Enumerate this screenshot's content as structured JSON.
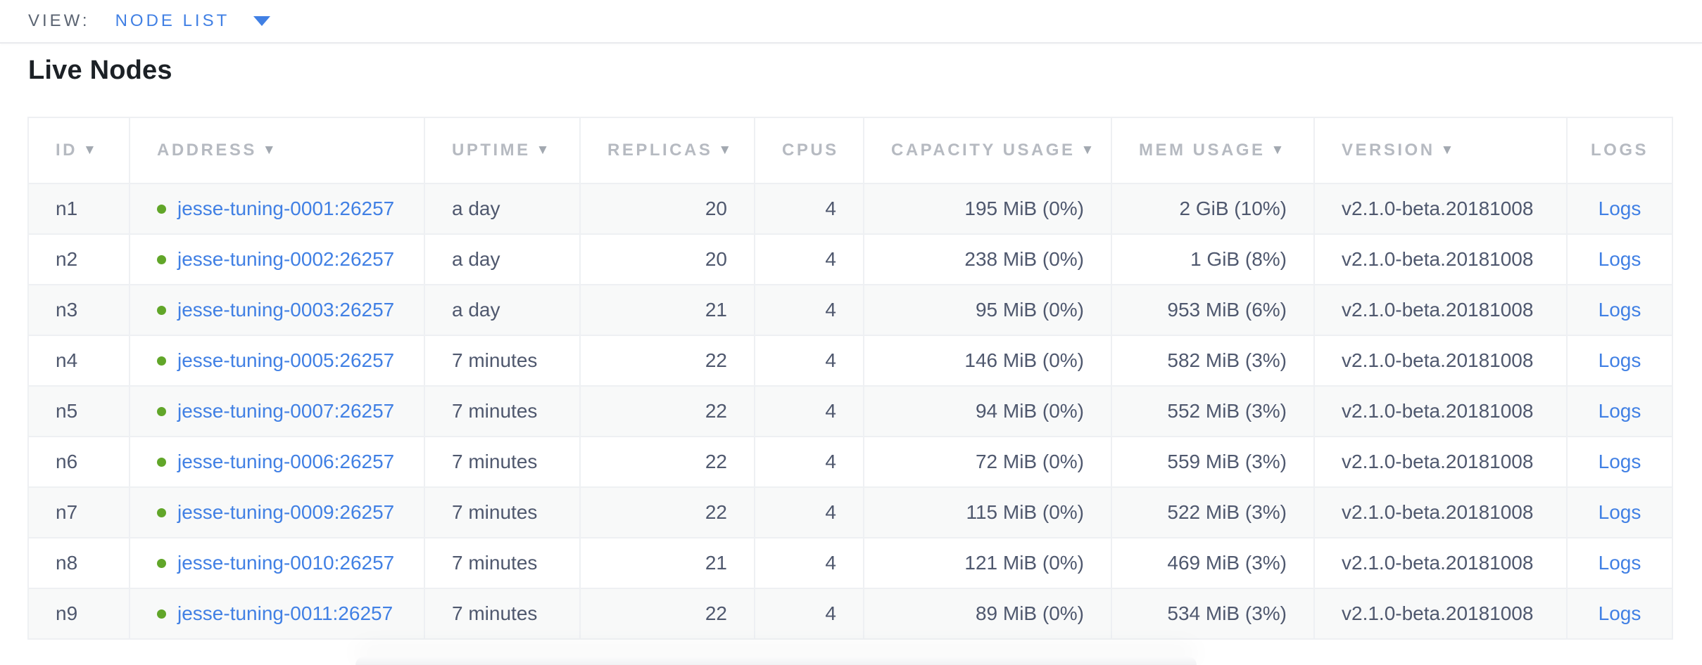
{
  "view_bar": {
    "label": "VIEW:",
    "selected": "NODE LIST"
  },
  "heading": "Live Nodes",
  "icons": {
    "sort_desc": "▼",
    "dropdown_caret": "▼",
    "health_dot": "●"
  },
  "colors": {
    "link_blue": "#4180e4",
    "healthy_green": "#61a629",
    "header_gray": "#b6bac1",
    "row_text": "#4f586e",
    "row_alt_bg": "#f8f9f9"
  },
  "table": {
    "columns": [
      {
        "label": "ID",
        "sortable": true
      },
      {
        "label": "ADDRESS",
        "sortable": true
      },
      {
        "label": "UPTIME",
        "sortable": true
      },
      {
        "label": "REPLICAS",
        "sortable": true
      },
      {
        "label": "CPUS",
        "sortable": false
      },
      {
        "label": "CAPACITY USAGE",
        "sortable": true
      },
      {
        "label": "MEM USAGE",
        "sortable": true
      },
      {
        "label": "VERSION",
        "sortable": true
      },
      {
        "label": "LOGS",
        "sortable": false
      }
    ],
    "rows": [
      {
        "id": "n1",
        "address": "jesse-tuning-0001:26257",
        "status": "healthy",
        "uptime": "a day",
        "replicas": "20",
        "cpus": "4",
        "capacity": "195 MiB (0%)",
        "mem": "2 GiB (10%)",
        "version": "v2.1.0-beta.20181008",
        "logs": "Logs"
      },
      {
        "id": "n2",
        "address": "jesse-tuning-0002:26257",
        "status": "healthy",
        "uptime": "a day",
        "replicas": "20",
        "cpus": "4",
        "capacity": "238 MiB (0%)",
        "mem": "1 GiB (8%)",
        "version": "v2.1.0-beta.20181008",
        "logs": "Logs"
      },
      {
        "id": "n3",
        "address": "jesse-tuning-0003:26257",
        "status": "healthy",
        "uptime": "a day",
        "replicas": "21",
        "cpus": "4",
        "capacity": "95 MiB (0%)",
        "mem": "953 MiB (6%)",
        "version": "v2.1.0-beta.20181008",
        "logs": "Logs"
      },
      {
        "id": "n4",
        "address": "jesse-tuning-0005:26257",
        "status": "healthy",
        "uptime": "7 minutes",
        "replicas": "22",
        "cpus": "4",
        "capacity": "146 MiB (0%)",
        "mem": "582 MiB (3%)",
        "version": "v2.1.0-beta.20181008",
        "logs": "Logs"
      },
      {
        "id": "n5",
        "address": "jesse-tuning-0007:26257",
        "status": "healthy",
        "uptime": "7 minutes",
        "replicas": "22",
        "cpus": "4",
        "capacity": "94 MiB (0%)",
        "mem": "552 MiB (3%)",
        "version": "v2.1.0-beta.20181008",
        "logs": "Logs"
      },
      {
        "id": "n6",
        "address": "jesse-tuning-0006:26257",
        "status": "healthy",
        "uptime": "7 minutes",
        "replicas": "22",
        "cpus": "4",
        "capacity": "72 MiB (0%)",
        "mem": "559 MiB (3%)",
        "version": "v2.1.0-beta.20181008",
        "logs": "Logs"
      },
      {
        "id": "n7",
        "address": "jesse-tuning-0009:26257",
        "status": "healthy",
        "uptime": "7 minutes",
        "replicas": "22",
        "cpus": "4",
        "capacity": "115 MiB (0%)",
        "mem": "522 MiB (3%)",
        "version": "v2.1.0-beta.20181008",
        "logs": "Logs"
      },
      {
        "id": "n8",
        "address": "jesse-tuning-0010:26257",
        "status": "healthy",
        "uptime": "7 minutes",
        "replicas": "21",
        "cpus": "4",
        "capacity": "121 MiB (0%)",
        "mem": "469 MiB (3%)",
        "version": "v2.1.0-beta.20181008",
        "logs": "Logs"
      },
      {
        "id": "n9",
        "address": "jesse-tuning-0011:26257",
        "status": "healthy",
        "uptime": "7 minutes",
        "replicas": "22",
        "cpus": "4",
        "capacity": "89 MiB (0%)",
        "mem": "534 MiB (3%)",
        "version": "v2.1.0-beta.20181008",
        "logs": "Logs"
      }
    ]
  }
}
